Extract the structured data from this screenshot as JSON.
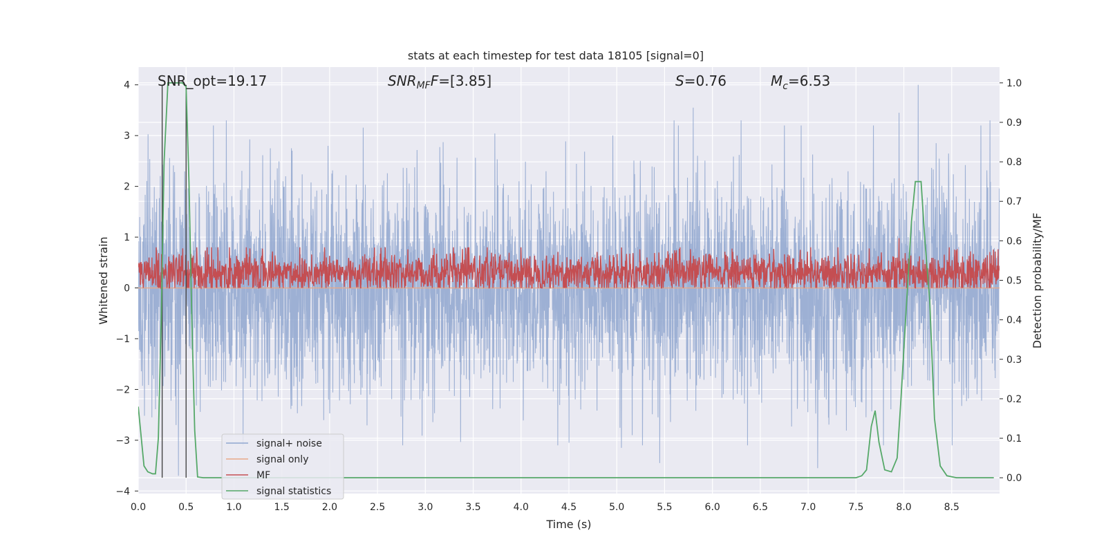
{
  "chart_data": {
    "type": "line",
    "title": "stats at each timestep for test data 18105 [signal=0]",
    "xlabel": "Time (s)",
    "ylabel_left": "Whitened strain",
    "ylabel_right": "Detection probability/MF",
    "xlim": [
      0,
      9.0
    ],
    "ylim_left": [
      -4.05,
      4.35
    ],
    "ylim_right": [
      -0.04,
      1.04
    ],
    "xticks": [
      "0.0",
      "0.5",
      "1.0",
      "1.5",
      "2.0",
      "2.5",
      "3.0",
      "3.5",
      "4.0",
      "4.5",
      "5.0",
      "5.5",
      "6.0",
      "6.5",
      "7.0",
      "7.5",
      "8.0",
      "8.5"
    ],
    "yticks_left": [
      "−4",
      "−3",
      "−2",
      "−1",
      "0",
      "1",
      "2",
      "3",
      "4"
    ],
    "yticks_right": [
      "0.0",
      "0.1",
      "0.2",
      "0.3",
      "0.4",
      "0.5",
      "0.6",
      "0.7",
      "0.8",
      "0.9",
      "1.0"
    ],
    "annotations": {
      "snr_opt": "SNR_opt=19.17",
      "snr_mf": "[3.85]",
      "s_val": "0.76",
      "mc_val": "6.53"
    },
    "legend": [
      "signal+ noise",
      "signal only",
      "MF",
      "signal statistics"
    ],
    "colors": {
      "signal_noise": "#8fa6cf",
      "signal_only": "#e8a887",
      "mf": "#c44e52",
      "stat": "#55a868",
      "vline": "#444444",
      "bg": "#eaeaf2",
      "grid": "#ffffff"
    },
    "vlines_x": [
      0.25,
      0.5
    ],
    "signal_only_level": 0.0,
    "series": [
      {
        "name": "signal+ noise",
        "description_stats": {
          "mean": 0.0,
          "typical_abs_max": 2.5,
          "peaks_up_to": 4.0,
          "peaks_down_to": -3.7
        },
        "notable_peaks": [
          [
            8.15,
            4.0
          ],
          [
            7.95,
            3.45
          ],
          [
            5.6,
            3.3
          ],
          [
            5.8,
            3.55
          ],
          [
            6.3,
            3.3
          ],
          [
            8.9,
            3.3
          ],
          [
            0.92,
            3.3
          ],
          [
            0.42,
            -3.7
          ],
          [
            4.5,
            -3.05
          ],
          [
            7.1,
            -3.55
          ],
          [
            5.45,
            -3.45
          ],
          [
            5.05,
            -3.15
          ]
        ]
      },
      {
        "name": "MF",
        "description_stats": {
          "mean": 0.3,
          "typical_min": 0.0,
          "typical_max": 0.8,
          "peak": 0.98
        }
      },
      {
        "name": "signal statistics",
        "axis": "right",
        "x": [
          0.0,
          0.06,
          0.1,
          0.15,
          0.18,
          0.21,
          0.24,
          0.27,
          0.31,
          0.36,
          0.41,
          0.46,
          0.5,
          0.53,
          0.56,
          0.59,
          0.62,
          0.68,
          0.8,
          1.0,
          2.0,
          3.0,
          4.0,
          5.0,
          6.0,
          7.0,
          7.5,
          7.56,
          7.61,
          7.66,
          7.7,
          7.74,
          7.8,
          7.87,
          7.93,
          7.97,
          8.03,
          8.08,
          8.12,
          8.18,
          8.22,
          8.27,
          8.32,
          8.38,
          8.45,
          8.55,
          8.7,
          8.94
        ],
        "y": [
          0.18,
          0.03,
          0.015,
          0.01,
          0.01,
          0.1,
          0.4,
          0.8,
          1.0,
          1.0,
          1.0,
          1.0,
          0.99,
          0.75,
          0.4,
          0.12,
          0.002,
          0.0,
          0.0,
          0.0,
          0.0,
          0.0,
          0.0,
          0.0,
          0.0,
          0.0,
          0.0,
          0.005,
          0.02,
          0.13,
          0.17,
          0.09,
          0.02,
          0.015,
          0.05,
          0.2,
          0.45,
          0.65,
          0.75,
          0.75,
          0.6,
          0.45,
          0.15,
          0.03,
          0.005,
          0.0,
          0.0,
          0.0
        ]
      }
    ]
  }
}
